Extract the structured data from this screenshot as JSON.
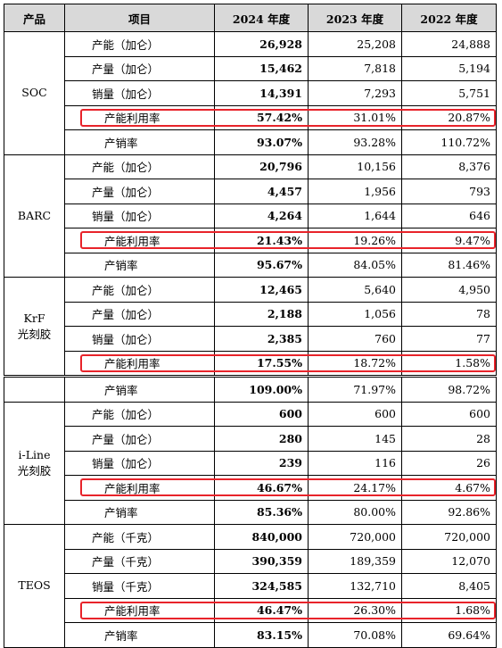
{
  "headers": [
    "产品",
    "项目",
    "2024 年度",
    "2023 年度",
    "2022 年度"
  ],
  "highlight_color": "#e8232a",
  "groups": [
    {
      "product": [
        "SOC"
      ],
      "rows": [
        {
          "item": "产能（加仑）",
          "v2024": "26,928",
          "v2023": "25,208",
          "v2022": "24,888"
        },
        {
          "item": "产量（加仑）",
          "v2024": "15,462",
          "v2023": "7,818",
          "v2022": "5,194"
        },
        {
          "item": "销量（加仑）",
          "v2024": "14,391",
          "v2023": "7,293",
          "v2022": "5,751"
        },
        {
          "item": "产能利用率",
          "v2024": "57.42%",
          "v2023": "31.01%",
          "v2022": "20.87%",
          "highlight": true
        },
        {
          "item": "产销率",
          "v2024": "93.07%",
          "v2023": "93.28%",
          "v2022": "110.72%"
        }
      ]
    },
    {
      "product": [
        "BARC"
      ],
      "rows": [
        {
          "item": "产能（加仑）",
          "v2024": "20,796",
          "v2023": "10,156",
          "v2022": "8,376"
        },
        {
          "item": "产量（加仑）",
          "v2024": "4,457",
          "v2023": "1,956",
          "v2022": "793"
        },
        {
          "item": "销量（加仑）",
          "v2024": "4,264",
          "v2023": "1,644",
          "v2022": "646"
        },
        {
          "item": "产能利用率",
          "v2024": "21.43%",
          "v2023": "19.26%",
          "v2022": "9.47%",
          "highlight": true
        },
        {
          "item": "产销率",
          "v2024": "95.67%",
          "v2023": "84.05%",
          "v2022": "81.46%"
        }
      ]
    },
    {
      "product": [
        "KrF",
        "光刻胶"
      ],
      "rows": [
        {
          "item": "产能（加仑）",
          "v2024": "12,465",
          "v2023": "5,640",
          "v2022": "4,950"
        },
        {
          "item": "产量（加仑）",
          "v2024": "2,188",
          "v2023": "1,056",
          "v2022": "78"
        },
        {
          "item": "销量（加仑）",
          "v2024": "2,385",
          "v2023": "760",
          "v2022": "77"
        },
        {
          "item": "产能利用率",
          "v2024": "17.55%",
          "v2023": "18.72%",
          "v2022": "1.58%",
          "highlight": true
        },
        {
          "item": "产销率",
          "v2024": "109.00%",
          "v2023": "71.97%",
          "v2022": "98.72%",
          "page_break": true
        }
      ]
    },
    {
      "product": [
        "i-Line",
        "光刻胶"
      ],
      "rows": [
        {
          "item": "产能（加仑）",
          "v2024": "600",
          "v2023": "600",
          "v2022": "600"
        },
        {
          "item": "产量（加仑）",
          "v2024": "280",
          "v2023": "145",
          "v2022": "28"
        },
        {
          "item": "销量（加仑）",
          "v2024": "239",
          "v2023": "116",
          "v2022": "26"
        },
        {
          "item": "产能利用率",
          "v2024": "46.67%",
          "v2023": "24.17%",
          "v2022": "4.67%",
          "highlight": true
        },
        {
          "item": "产销率",
          "v2024": "85.36%",
          "v2023": "80.00%",
          "v2022": "92.86%"
        }
      ]
    },
    {
      "product": [
        "TEOS"
      ],
      "rows": [
        {
          "item": "产能（千克）",
          "v2024": "840,000",
          "v2023": "720,000",
          "v2022": "720,000"
        },
        {
          "item": "产量（千克）",
          "v2024": "390,359",
          "v2023": "189,359",
          "v2022": "12,070"
        },
        {
          "item": "销量（千克）",
          "v2024": "324,585",
          "v2023": "132,710",
          "v2022": "8,405"
        },
        {
          "item": "产能利用率",
          "v2024": "46.47%",
          "v2023": "26.30%",
          "v2022": "1.68%",
          "highlight": true
        },
        {
          "item": "产销率",
          "v2024": "83.15%",
          "v2023": "70.08%",
          "v2022": "69.64%"
        }
      ]
    }
  ]
}
